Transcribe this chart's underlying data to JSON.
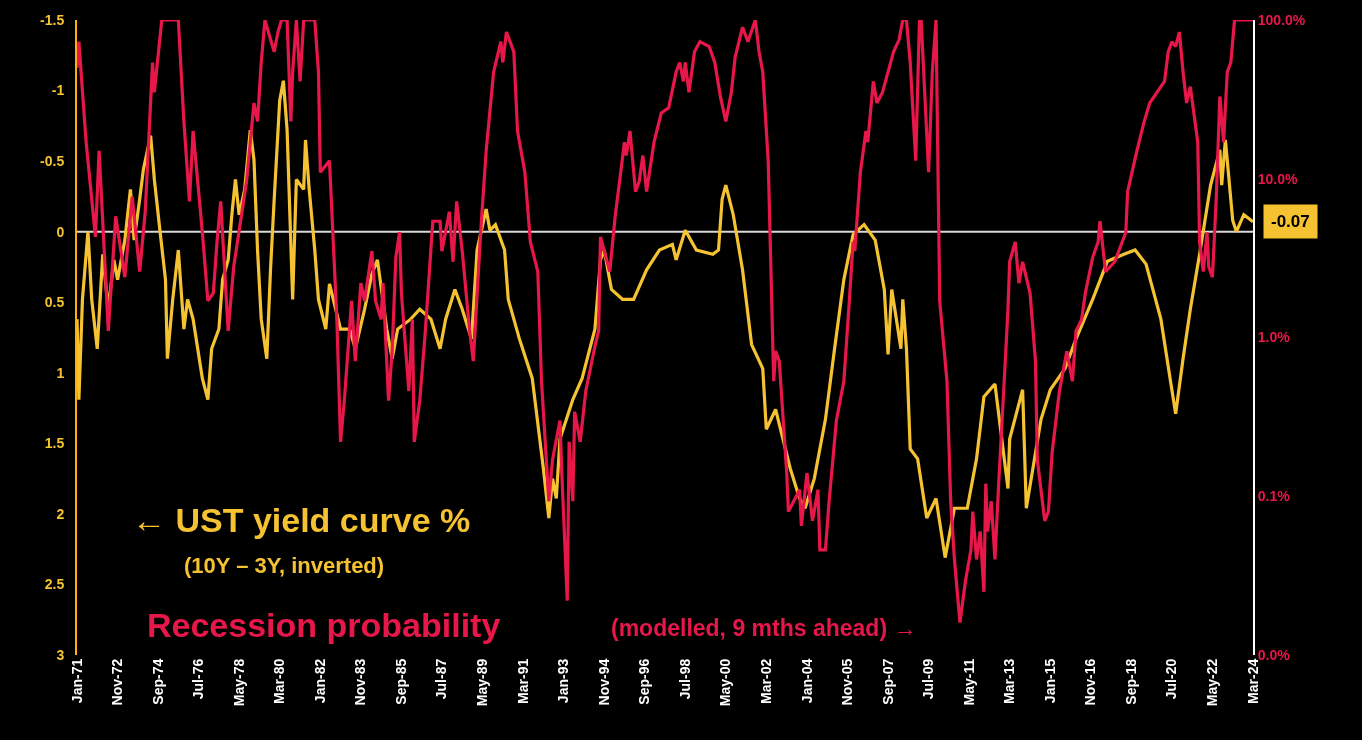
{
  "chart_data": {
    "type": "line",
    "annotations": [
      "← UST yield curve %",
      "(10Y – 3Y, inverted)",
      "Recession probability",
      "(modelled, 9 mths ahead) →",
      {
        "text": "-0.07",
        "x": "2024-03",
        "y": -0.07
      }
    ],
    "series": [
      {
        "color": "#f5c332",
        "axis": "y",
        "x": [
          "1971-01",
          "1971-02",
          "1971-04",
          "1971-07",
          "1971-09",
          "1971-12",
          "1972-03",
          "1972-06",
          "1972-09",
          "1972-11",
          "1973-03",
          "1973-06",
          "1973-08",
          "1973-11",
          "1974-01",
          "1974-05",
          "1974-07",
          "1974-10",
          "1975-01",
          "1975-02",
          "1975-05",
          "1975-08",
          "1975-11",
          "1976-01",
          "1976-04",
          "1976-09",
          "1976-12",
          "1977-02",
          "1977-06",
          "1977-08",
          "1977-11",
          "1978-01",
          "1978-03",
          "1978-05",
          "1978-08",
          "1978-11",
          "1979-01",
          "1979-03",
          "1979-05",
          "1979-08",
          "1979-10",
          "1979-12",
          "1980-03",
          "1980-05",
          "1980-07",
          "1980-10",
          "1980-12",
          "1981-04",
          "1981-05",
          "1981-07",
          "1981-10",
          "1981-12",
          "1982-04",
          "1982-06",
          "1982-12",
          "1983-05",
          "1983-08",
          "1984-01",
          "1984-05",
          "1984-08",
          "1985-01",
          "1985-04",
          "1985-07",
          "1986-02",
          "1986-07",
          "1987-01",
          "1987-06",
          "1987-09",
          "1988-02",
          "1988-06",
          "1988-11",
          "1989-02",
          "1989-07",
          "1989-09",
          "1989-12",
          "1990-05",
          "1990-07",
          "1991-01",
          "1991-08",
          "1992-02",
          "1992-05",
          "1992-07",
          "1992-09",
          "1992-11",
          "1993-06",
          "1993-11",
          "1994-06",
          "1994-09",
          "1994-11",
          "1995-03",
          "1995-09",
          "1996-03",
          "1996-10",
          "1997-05",
          "1997-12",
          "1998-02",
          "1998-07",
          "1999-01",
          "1999-10",
          "2000-01",
          "2000-03",
          "2000-05",
          "2000-09",
          "2001-02",
          "2001-07",
          "2002-01",
          "2002-03",
          "2002-08",
          "2003-04",
          "2003-09",
          "2003-12",
          "2004-05",
          "2004-11",
          "2005-04",
          "2005-09",
          "2006-02",
          "2006-08",
          "2007-02",
          "2007-07",
          "2007-09",
          "2007-11",
          "2008-04",
          "2008-05",
          "2008-07",
          "2008-09",
          "2009-01",
          "2009-06",
          "2009-11",
          "2010-04",
          "2010-09",
          "2011-04",
          "2011-09",
          "2012-01",
          "2012-07",
          "2013-02",
          "2013-03",
          "2013-10",
          "2013-12",
          "2014-08",
          "2015-01",
          "2015-09",
          "2016-03",
          "2016-12",
          "2017-08",
          "2018-05",
          "2018-11",
          "2019-05",
          "2020-01",
          "2020-06",
          "2020-09",
          "2021-01",
          "2021-05",
          "2021-10",
          "2022-04",
          "2022-09",
          "2022-10",
          "2022-12",
          "2023-04",
          "2023-06",
          "2023-10",
          "2024-03"
        ],
        "values": [
          0.62,
          1.19,
          0.48,
          0,
          0.48,
          0.83,
          0.16,
          0.55,
          0.2,
          0.34,
          0.06,
          -0.3,
          0.06,
          -0.23,
          -0.44,
          -0.68,
          -0.37,
          -0.01,
          0.34,
          0.9,
          0.48,
          0.13,
          0.69,
          0.48,
          0.62,
          1.04,
          1.19,
          0.83,
          0.69,
          0.34,
          0.2,
          -0.12,
          -0.37,
          -0.12,
          -0.3,
          -0.72,
          -0.51,
          0.13,
          0.62,
          0.9,
          0.27,
          -0.23,
          -0.93,
          -1.07,
          -0.72,
          0.48,
          -0.37,
          -0.3,
          -0.65,
          -0.3,
          0.13,
          0.48,
          0.69,
          0.37,
          0.69,
          0.69,
          0.83,
          0.55,
          0.3,
          0.2,
          0.69,
          0.9,
          0.69,
          0.62,
          0.55,
          0.62,
          0.83,
          0.62,
          0.41,
          0.55,
          0.76,
          0.13,
          -0.16,
          -0.01,
          -0.05,
          0.13,
          0.48,
          0.76,
          1.04,
          1.68,
          2.03,
          1.75,
          1.89,
          1.47,
          1.19,
          1.04,
          0.69,
          0.2,
          0.13,
          0.41,
          0.48,
          0.48,
          0.27,
          0.13,
          0.09,
          0.2,
          -0.01,
          0.13,
          0.16,
          0.13,
          -0.23,
          -0.33,
          -0.12,
          0.27,
          0.8,
          0.97,
          1.4,
          1.26,
          1.68,
          1.89,
          1.96,
          1.75,
          1.33,
          0.83,
          0.34,
          0.02,
          -0.05,
          0.06,
          0.41,
          0.87,
          0.41,
          0.83,
          0.48,
          0.83,
          1.54,
          1.61,
          2.03,
          1.89,
          2.31,
          1.96,
          1.96,
          1.61,
          1.17,
          1.08,
          1.82,
          1.47,
          1.12,
          1.96,
          1.33,
          1.12,
          0.97,
          0.76,
          0.48,
          0.21,
          0.16,
          0.13,
          0.23,
          0.62,
          1.04,
          1.29,
          0.9,
          0.55,
          0.16,
          -0.33,
          -0.58,
          -0.33,
          -0.65,
          -0.08,
          0,
          -0.12,
          -0.07
        ]
      },
      {
        "color": "#e8174a",
        "axis": "y2",
        "x": [
          "1971-01",
          "1971-02",
          "1971-06",
          "1971-11",
          "1972-01",
          "1972-06",
          "1972-10",
          "1973-03",
          "1973-07",
          "1973-11",
          "1974-02",
          "1974-06",
          "1974-07",
          "1974-11",
          "1975-08",
          "1975-11",
          "1976-02",
          "1976-04",
          "1976-09",
          "1976-12",
          "1977-03",
          "1977-05",
          "1977-07",
          "1977-11",
          "1978-02",
          "1978-09",
          "1979-01",
          "1979-03",
          "1979-05",
          "1979-07",
          "1979-12",
          "1980-02",
          "1980-04",
          "1980-07",
          "1980-09",
          "1980-10",
          "1980-12",
          "1981-02",
          "1981-04",
          "1981-10",
          "1981-12",
          "1982-01",
          "1982-06",
          "1982-10",
          "1982-12",
          "1983-02",
          "1983-06",
          "1983-08",
          "1983-11",
          "1984-01",
          "1984-05",
          "1984-07",
          "1984-10",
          "1984-11",
          "1985-02",
          "1985-04",
          "1985-06",
          "1985-08",
          "1985-09",
          "1986-01",
          "1986-03",
          "1986-04",
          "1986-07",
          "1986-10",
          "1987-02",
          "1987-06",
          "1987-07",
          "1987-11",
          "1988-01",
          "1988-03",
          "1988-06",
          "1988-10",
          "1988-12",
          "1989-04",
          "1989-07",
          "1989-11",
          "1990-03",
          "1990-04",
          "1990-06",
          "1990-10",
          "1990-12",
          "1991-04",
          "1991-07",
          "1991-11",
          "1992-01",
          "1992-05",
          "1992-07",
          "1992-11",
          "1992-12",
          "1993-03",
          "1993-04",
          "1993-06",
          "1993-07",
          "1993-10",
          "1994-01",
          "1994-06",
          "1994-08",
          "1994-09",
          "1995-02",
          "1995-05",
          "1995-08",
          "1995-10",
          "1995-11",
          "1996-01",
          "1996-04",
          "1996-06",
          "1996-08",
          "1996-10",
          "1997-02",
          "1997-06",
          "1997-10",
          "1998-02",
          "1998-04",
          "1998-06",
          "1998-07",
          "1998-09",
          "1998-12",
          "1999-03",
          "1999-08",
          "1999-11",
          "2000-02",
          "2000-05",
          "2000-08",
          "2000-10",
          "2001-02",
          "2001-05",
          "2001-09",
          "2001-11",
          "2002-01",
          "2002-04",
          "2002-07",
          "2002-08",
          "2002-10",
          "2003-02",
          "2003-03",
          "2003-09",
          "2003-10",
          "2004-01",
          "2004-04",
          "2004-07",
          "2004-08",
          "2004-11",
          "2005-01",
          "2005-05",
          "2005-09",
          "2005-12",
          "2006-02",
          "2006-03",
          "2006-06",
          "2006-09",
          "2006-10",
          "2007-01",
          "2007-03",
          "2007-06",
          "2007-12",
          "2008-03",
          "2008-05",
          "2008-07",
          "2008-09",
          "2008-12",
          "2009-02",
          "2009-03",
          "2009-07",
          "2009-09",
          "2009-11",
          "2010-01",
          "2010-05",
          "2010-07",
          "2010-09",
          "2010-12",
          "2011-03",
          "2011-06",
          "2011-07",
          "2011-09",
          "2011-11",
          "2012-01",
          "2012-02",
          "2012-03",
          "2012-05",
          "2012-07",
          "2012-09",
          "2012-12",
          "2013-02",
          "2013-03",
          "2013-06",
          "2013-08",
          "2013-10",
          "2014-02",
          "2014-05",
          "2014-06",
          "2014-10",
          "2014-12",
          "2015-02",
          "2015-06",
          "2015-10",
          "2016-01",
          "2016-03",
          "2016-06",
          "2016-08",
          "2016-12",
          "2017-03",
          "2017-04",
          "2017-07",
          "2017-12",
          "2018-06",
          "2018-07",
          "2018-12",
          "2019-04",
          "2019-07",
          "2020-01",
          "2020-03",
          "2020-05",
          "2020-07",
          "2020-09",
          "2020-11",
          "2021-01",
          "2021-03",
          "2021-05",
          "2021-09",
          "2021-10",
          "2021-12",
          "2022-02",
          "2022-03",
          "2022-05",
          "2022-07",
          "2022-09",
          "2022-11",
          "2023-01",
          "2023-03",
          "2023-05",
          "2024-03"
        ],
        "values": [
          50,
          73,
          17,
          4.3,
          15,
          1.1,
          5.8,
          2.4,
          7.7,
          2.6,
          6.2,
          54,
          35,
          100,
          100,
          23,
          7.2,
          20,
          4.6,
          1.7,
          1.9,
          4.0,
          7.2,
          1.1,
          2.8,
          9.6,
          30,
          23,
          54,
          100,
          63,
          84,
          100,
          100,
          23,
          47,
          100,
          41,
          100,
          100,
          47,
          11,
          13,
          1.3,
          0.22,
          0.4,
          1.7,
          0.71,
          2.2,
          1.7,
          3.5,
          1.7,
          1.3,
          2.2,
          0.4,
          0.82,
          3.2,
          4.6,
          1.9,
          0.46,
          1.3,
          0.22,
          0.4,
          1.1,
          5.4,
          5.4,
          3.5,
          6.2,
          3.0,
          7.2,
          3.5,
          1.1,
          0.71,
          4.6,
          15,
          47,
          73,
          54,
          84,
          63,
          20,
          11,
          4.0,
          2.6,
          0.53,
          0.093,
          0.17,
          0.3,
          0.14,
          0.022,
          0.22,
          0.093,
          0.34,
          0.22,
          0.46,
          0.88,
          1.1,
          4.3,
          2.6,
          5.8,
          11,
          17,
          14,
          20,
          8.3,
          9.6,
          14,
          8.3,
          17,
          26,
          28,
          47,
          54,
          41,
          54,
          35,
          63,
          73,
          68,
          54,
          33,
          23,
          35,
          58,
          90,
          73,
          100,
          63,
          47,
          13,
          0.53,
          0.82,
          0.71,
          0.14,
          0.08,
          0.11,
          0.065,
          0.14,
          0.07,
          0.11,
          0.046,
          0.046,
          0.093,
          0.3,
          0.53,
          1.7,
          4.0,
          3.5,
          11,
          20,
          17,
          41,
          30,
          35,
          63,
          75,
          100,
          100,
          54,
          13,
          100,
          100,
          11,
          47,
          100,
          1.7,
          0.53,
          0.093,
          0.04,
          0.016,
          0.029,
          0.046,
          0.08,
          0.04,
          0.06,
          0.025,
          0.12,
          0.06,
          0.093,
          0.04,
          0.12,
          0.53,
          1.5,
          3.0,
          4.0,
          2.2,
          3.0,
          1.9,
          0.71,
          0.17,
          0.07,
          0.08,
          0.19,
          0.46,
          0.82,
          0.53,
          1.1,
          1.3,
          1.9,
          3.2,
          4.0,
          5.4,
          2.6,
          3.0,
          4.6,
          8.3,
          15,
          23,
          30,
          38,
          41,
          63,
          73,
          68,
          84,
          47,
          30,
          38,
          17,
          4.0,
          2.6,
          4.6,
          2.8,
          2.4,
          7.2,
          33,
          17,
          47,
          54,
          100,
          100
        ]
      }
    ],
    "xlim": [
      "1971-01",
      "2024-03"
    ],
    "xticks": [
      {
        "value": "1971-01",
        "label": "Jan-71"
      },
      {
        "value": "1972-11",
        "label": "Nov-72"
      },
      {
        "value": "1974-09",
        "label": "Sep-74"
      },
      {
        "value": "1976-07",
        "label": "Jul-76"
      },
      {
        "value": "1978-05",
        "label": "May-78"
      },
      {
        "value": "1980-03",
        "label": "Mar-80"
      },
      {
        "value": "1982-01",
        "label": "Jan-82"
      },
      {
        "value": "1983-11",
        "label": "Nov-83"
      },
      {
        "value": "1985-09",
        "label": "Sep-85"
      },
      {
        "value": "1987-07",
        "label": "Jul-87"
      },
      {
        "value": "1989-05",
        "label": "May-89"
      },
      {
        "value": "1991-03",
        "label": "Mar-91"
      },
      {
        "value": "1993-01",
        "label": "Jan-93"
      },
      {
        "value": "1994-11",
        "label": "Nov-94"
      },
      {
        "value": "1996-09",
        "label": "Sep-96"
      },
      {
        "value": "1998-07",
        "label": "Jul-98"
      },
      {
        "value": "2000-05",
        "label": "May-00"
      },
      {
        "value": "2002-03",
        "label": "Mar-02"
      },
      {
        "value": "2004-01",
        "label": "Jan-04"
      },
      {
        "value": "2005-11",
        "label": "Nov-05"
      },
      {
        "value": "2007-09",
        "label": "Sep-07"
      },
      {
        "value": "2009-07",
        "label": "Jul-09"
      },
      {
        "value": "2011-05",
        "label": "May-11"
      },
      {
        "value": "2013-03",
        "label": "Mar-13"
      },
      {
        "value": "2015-01",
        "label": "Jan-15"
      },
      {
        "value": "2016-11",
        "label": "Nov-16"
      },
      {
        "value": "2018-09",
        "label": "Sep-18"
      },
      {
        "value": "2020-07",
        "label": "Jul-20"
      },
      {
        "value": "2022-05",
        "label": "May-22"
      },
      {
        "value": "2024-03",
        "label": "Mar-24"
      }
    ],
    "ylim": [
      3,
      -1.5
    ],
    "yticks": [
      -1.5,
      -1,
      -0.5,
      0,
      0.5,
      1,
      1.5,
      2,
      2.5,
      3
    ],
    "log": "y2",
    "y2lim": [
      0.01,
      100
    ],
    "y2ticks": [
      {
        "value": 0.01,
        "label": "0.0%"
      },
      {
        "value": 0.1,
        "label": "0.1%"
      },
      {
        "value": 1,
        "label": "1.0%"
      },
      {
        "value": 10,
        "label": "10.0%"
      },
      {
        "value": 100,
        "label": "100.0%"
      }
    ],
    "ref_lines": [
      {
        "axis": "y",
        "value": 0,
        "color": "#d9d9d9"
      }
    ],
    "grid": false,
    "marker": "none",
    "line_style": "solid"
  }
}
